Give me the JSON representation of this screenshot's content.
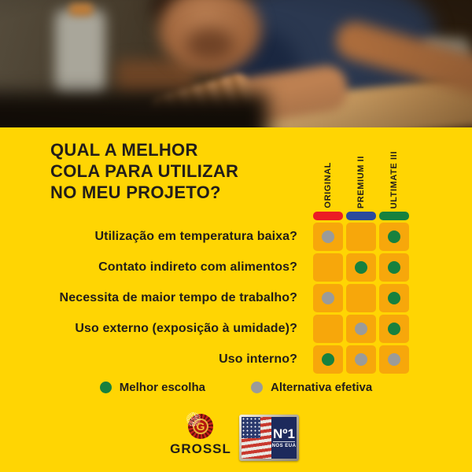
{
  "palette": {
    "background_yellow": "#FFD503",
    "cell_orange": "#F7A70B",
    "ink": "#221D1A",
    "original_red": "#EC1C24",
    "premium_blue": "#2A4A9E",
    "ultimate_green": "#17813E",
    "best_green": "#17813E",
    "alternative_gray": "#9B9B99"
  },
  "title": {
    "line1": "QUAL A MELHOR",
    "line2": "COLA PARA UTILIZAR",
    "line3": "NO MEU PROJETO?"
  },
  "chart_data": {
    "type": "table",
    "title": "QUAL A MELHOR COLA PARA UTILIZAR NO MEU PROJETO?",
    "columns": [
      {
        "label": "ORIGINAL",
        "color": "#EC1C24"
      },
      {
        "label": "PREMIUM II",
        "color": "#2A4A9E"
      },
      {
        "label": "ULTIMATE III",
        "color": "#17813E"
      }
    ],
    "rows": [
      {
        "question": "Utilização em temperatura baixa?",
        "cells": [
          "alt",
          "",
          "best"
        ]
      },
      {
        "question": "Contato indireto com alimentos?",
        "cells": [
          "",
          "best",
          "best"
        ]
      },
      {
        "question": "Necessita de maior tempo de trabalho?",
        "cells": [
          "alt",
          "",
          "best"
        ]
      },
      {
        "question": "Uso externo (exposição à umidade)?",
        "cells": [
          "",
          "alt",
          "best"
        ]
      },
      {
        "question": "Uso interno?",
        "cells": [
          "best",
          "alt",
          "alt"
        ]
      }
    ],
    "legend": [
      {
        "key": "best",
        "label": "Melhor escolha",
        "color": "#17813E"
      },
      {
        "key": "alt",
        "label": "Alternativa efetiva",
        "color": "#9B9B99"
      }
    ],
    "layout_hints": {
      "grid": "3 columns x 5 rows",
      "marks": "best=green dot, alt=gray dot, empty=no dot"
    }
  },
  "footer": {
    "brand": "GROSSL",
    "brand_monogram": "G",
    "badge_number": "Nº1",
    "badge_caption": "NOS EUA"
  }
}
